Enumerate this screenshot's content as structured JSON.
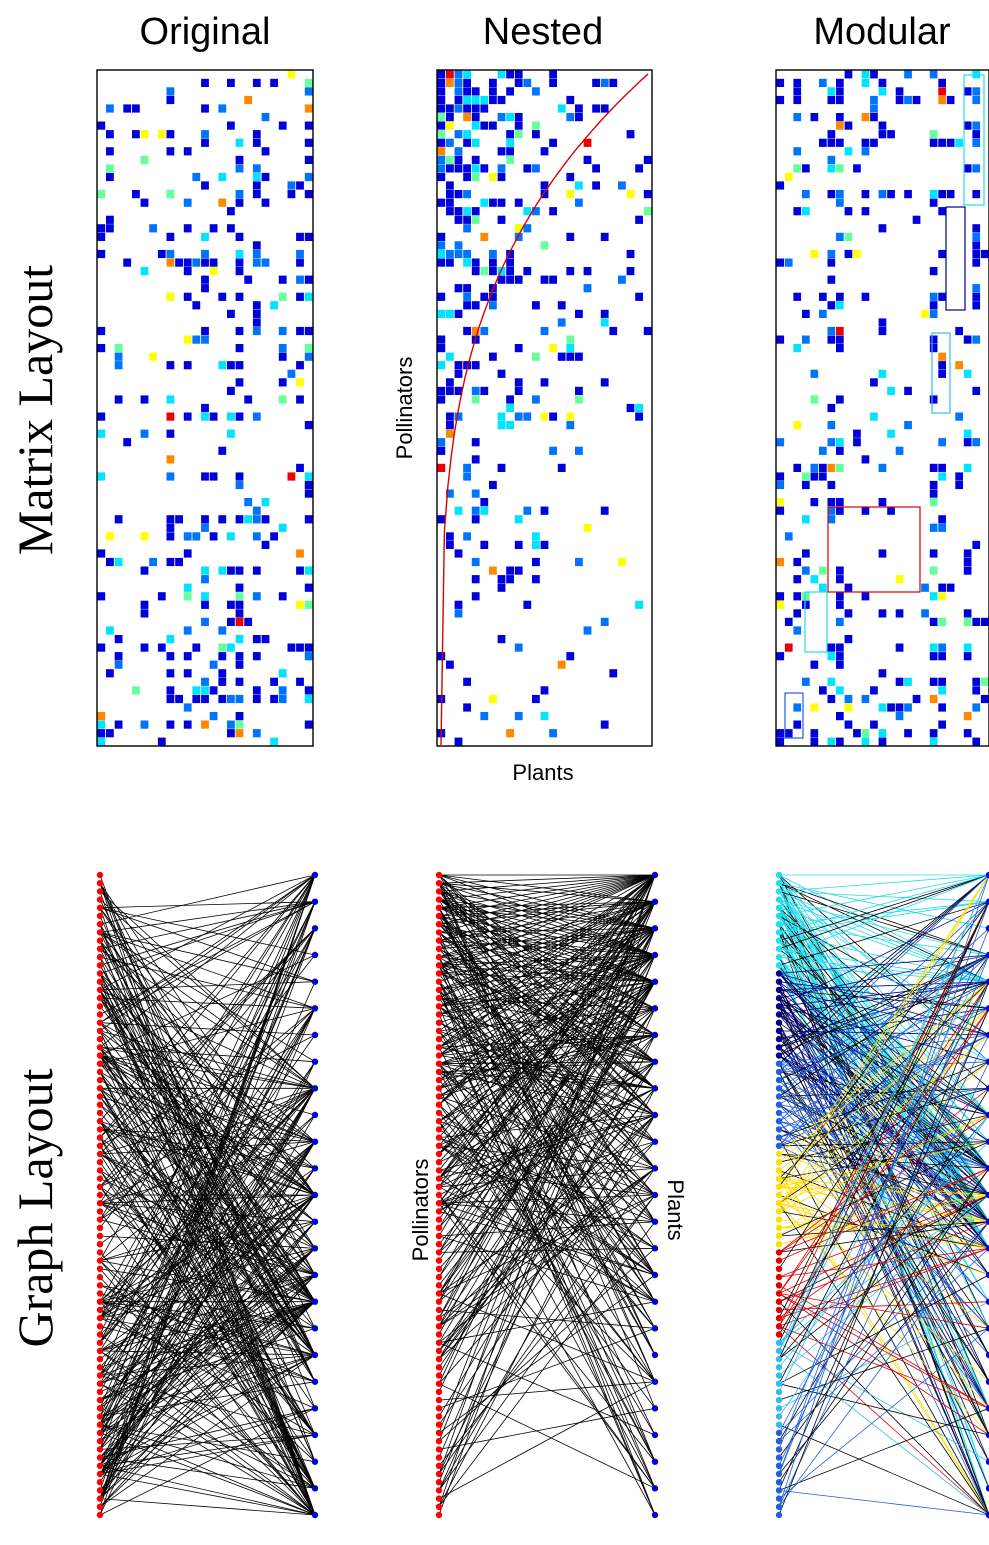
{
  "column_titles": [
    "Original",
    "Nested",
    "Modular"
  ],
  "row_titles": [
    "Matrix Layout",
    "Graph Layout"
  ],
  "axis_labels": {
    "nested_matrix_x": "Plants",
    "nested_matrix_y": "Pollinators",
    "nested_graph_left": "Pollinators",
    "nested_graph_right": "Plants"
  },
  "colors": {
    "cell_scale": [
      "#0000dd",
      "#0073ff",
      "#00e5ff",
      "#66ff99",
      "#ffff00",
      "#ff8800",
      "#ee0000"
    ],
    "pollinator_node": "#ff0000",
    "plant_node": "#0000dd",
    "edge": "#000000",
    "nested_curve": "#dd0000",
    "module_colors": [
      "#22ddee",
      "#000088",
      "#1f5fe0",
      "#ffdd00",
      "#dd0000",
      "#33bbee",
      "#1f5fe0"
    ]
  },
  "network": {
    "pollinators": 79,
    "plants": 25
  }
}
